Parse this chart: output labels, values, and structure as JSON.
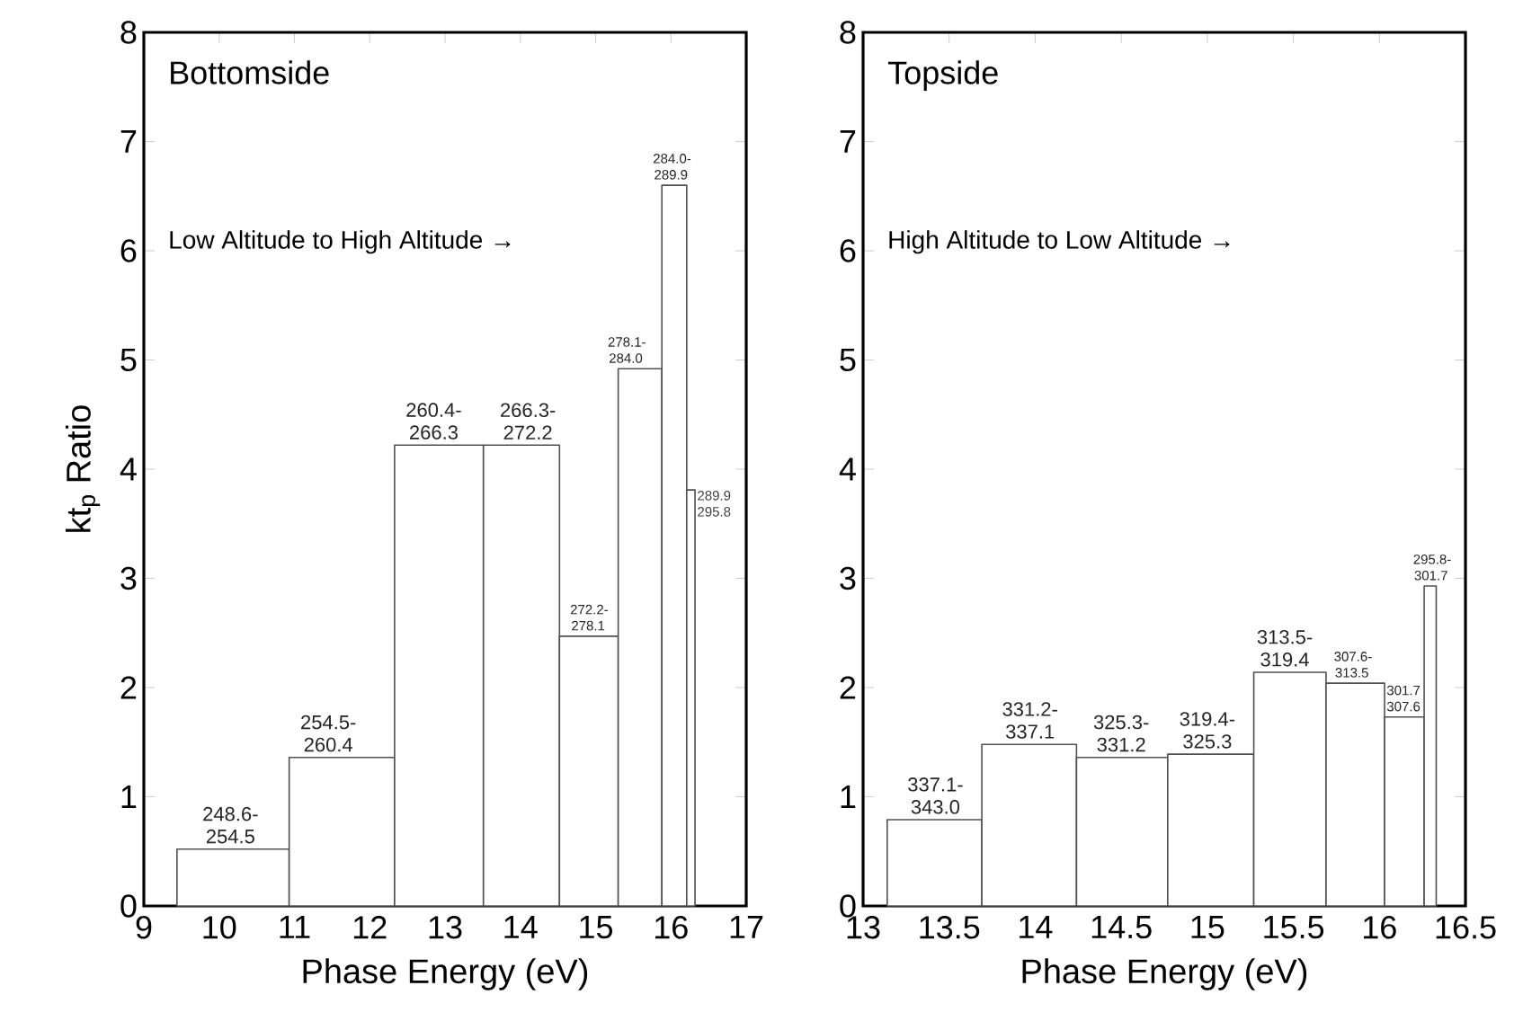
{
  "chart_data": [
    {
      "type": "histogram",
      "title": "Bottomside",
      "xlabel": "Phase Energy (eV)",
      "ylabel": "kt$_{p}$ Ratio",
      "color": "#505050",
      "bins": [
        9.44,
        10.93,
        12.33,
        13.51,
        14.52,
        15.3,
        15.88,
        16.21,
        16.32
      ],
      "values": [
        0.52,
        1.36,
        4.22,
        4.22,
        2.47,
        4.92,
        6.6,
        3.81
      ],
      "xlim": [
        9,
        17
      ],
      "ylim": [
        0,
        8
      ],
      "xticks": [
        9,
        10,
        11,
        12,
        13,
        14,
        15,
        16,
        17
      ],
      "yticks": [
        0,
        1,
        2,
        3,
        4,
        5,
        6,
        7,
        8
      ],
      "grid": false,
      "annotations": [
        "Low Altitude to High Altitude →",
        {
          "text": "248.6-254.5",
          "x": 10.15,
          "y": 0.52
        },
        {
          "text": "254.5-260.4",
          "x": 11.45,
          "y": 1.36
        },
        {
          "text": "260.4-266.3",
          "x": 12.85,
          "y": 4.22
        },
        {
          "text": "266.3-272.2",
          "x": 14.1,
          "y": 4.22
        },
        {
          "text": "272.2-278.1",
          "x": 14.9,
          "y": 2.47
        },
        {
          "text": "278.1-284.0",
          "x": 15.4,
          "y": 4.92
        },
        {
          "text": "284.0-289.9",
          "x": 16.0,
          "y": 6.6
        },
        {
          "text": "289.9 295.8",
          "x": 16.27,
          "y": 3.81
        }
      ]
    },
    {
      "type": "histogram",
      "title": "Topside",
      "xlabel": "Phase Energy (eV)",
      "color": "#505050",
      "bins": [
        13.14,
        13.69,
        14.24,
        14.77,
        15.27,
        15.69,
        16.03,
        16.26,
        16.33
      ],
      "values": [
        0.79,
        1.48,
        1.36,
        1.39,
        2.14,
        2.04,
        1.73,
        2.93
      ],
      "xlim": [
        13,
        16.5
      ],
      "ylim": [
        0,
        8
      ],
      "xticks": [
        13,
        13.5,
        14,
        14.5,
        15,
        15.5,
        16,
        16.5
      ],
      "yticks": [
        0,
        1,
        2,
        3,
        4,
        5,
        6,
        7,
        8
      ],
      "grid": false,
      "annotations": [
        "High Altitude to Low Altitude →",
        {
          "text": "337.1-343.0",
          "x": 13.42,
          "y": 0.79
        },
        {
          "text": "331.2-337.1",
          "x": 13.97,
          "y": 1.48
        },
        {
          "text": "325.3-331.2",
          "x": 14.5,
          "y": 1.36
        },
        {
          "text": "319.4-325.3",
          "x": 15.0,
          "y": 1.39
        },
        {
          "text": "313.5-319.4",
          "x": 15.45,
          "y": 2.14
        },
        {
          "text": "307.6-313.5",
          "x": 15.84,
          "y": 2.04
        },
        {
          "text": "301.7 307.6",
          "x": 16.14,
          "y": 1.73
        },
        {
          "text": "295.8-301.7",
          "x": 16.3,
          "y": 2.93
        }
      ]
    }
  ]
}
